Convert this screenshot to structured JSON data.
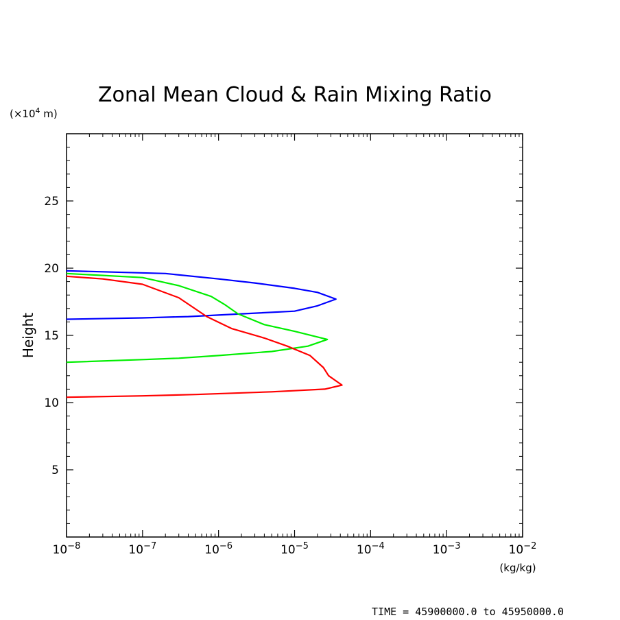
{
  "chart_data": {
    "type": "line",
    "title": "Zonal Mean Cloud & Rain Mixing Ratio",
    "ylabel": "Height",
    "yunit": "(×10⁴ m)",
    "yunit_parts": {
      "prefix": "(×10",
      "exp": "4",
      "suffix": " m)"
    },
    "xunit": "(kg/kg)",
    "xscale": "log",
    "xlim": [
      1e-08,
      0.01
    ],
    "ylim": [
      0,
      30
    ],
    "grid": false,
    "x_ticks": [
      {
        "value": 1e-08,
        "base": "10",
        "exp": "−8"
      },
      {
        "value": 1e-07,
        "base": "10",
        "exp": "−7"
      },
      {
        "value": 1e-06,
        "base": "10",
        "exp": "−6"
      },
      {
        "value": 1e-05,
        "base": "10",
        "exp": "−5"
      },
      {
        "value": 0.0001,
        "base": "10",
        "exp": "−4"
      },
      {
        "value": 0.001,
        "base": "10",
        "exp": "−3"
      },
      {
        "value": 0.01,
        "base": "10",
        "exp": "−2"
      }
    ],
    "y_ticks": [
      {
        "value": 5,
        "label": "5"
      },
      {
        "value": 10,
        "label": "10"
      },
      {
        "value": 15,
        "label": "15"
      },
      {
        "value": 20,
        "label": "20"
      },
      {
        "value": 25,
        "label": "25"
      }
    ],
    "series": [
      {
        "color": "#0000ff",
        "points": [
          [
            1e-08,
            19.8
          ],
          [
            2e-07,
            19.6
          ],
          [
            1e-06,
            19.2
          ],
          [
            3e-06,
            18.9
          ],
          [
            1e-05,
            18.5
          ],
          [
            2e-05,
            18.2
          ],
          [
            3.5e-05,
            17.7
          ],
          [
            2e-05,
            17.2
          ],
          [
            1e-05,
            16.8
          ],
          [
            2e-06,
            16.6
          ],
          [
            4e-07,
            16.4
          ],
          [
            1e-07,
            16.3
          ],
          [
            1e-08,
            16.2
          ]
        ]
      },
      {
        "color": "#00ee00",
        "points": [
          [
            1e-08,
            19.6
          ],
          [
            1e-07,
            19.3
          ],
          [
            3e-07,
            18.7
          ],
          [
            8e-07,
            17.9
          ],
          [
            1.2e-06,
            17.3
          ],
          [
            1.8e-06,
            16.6
          ],
          [
            4e-06,
            15.8
          ],
          [
            1e-05,
            15.3
          ],
          [
            2.7e-05,
            14.7
          ],
          [
            1.5e-05,
            14.2
          ],
          [
            5e-06,
            13.8
          ],
          [
            1e-06,
            13.5
          ],
          [
            3e-07,
            13.3
          ],
          [
            1e-07,
            13.2
          ],
          [
            1e-08,
            13.0
          ]
        ]
      },
      {
        "color": "#ff0000",
        "points": [
          [
            1e-08,
            19.4
          ],
          [
            3e-08,
            19.2
          ],
          [
            1e-07,
            18.8
          ],
          [
            3e-07,
            17.8
          ],
          [
            7e-07,
            16.4
          ],
          [
            1.5e-06,
            15.5
          ],
          [
            4e-06,
            14.8
          ],
          [
            8e-06,
            14.2
          ],
          [
            1.6e-05,
            13.5
          ],
          [
            2.4e-05,
            12.6
          ],
          [
            2.8e-05,
            12.0
          ],
          [
            4.2e-05,
            11.3
          ],
          [
            2.5e-05,
            11.0
          ],
          [
            5e-06,
            10.8
          ],
          [
            5e-07,
            10.6
          ],
          [
            1e-07,
            10.5
          ],
          [
            1e-08,
            10.4
          ]
        ]
      }
    ]
  },
  "footer": {
    "time_label": "TIME = 45900000.0 to 45950000.0"
  }
}
